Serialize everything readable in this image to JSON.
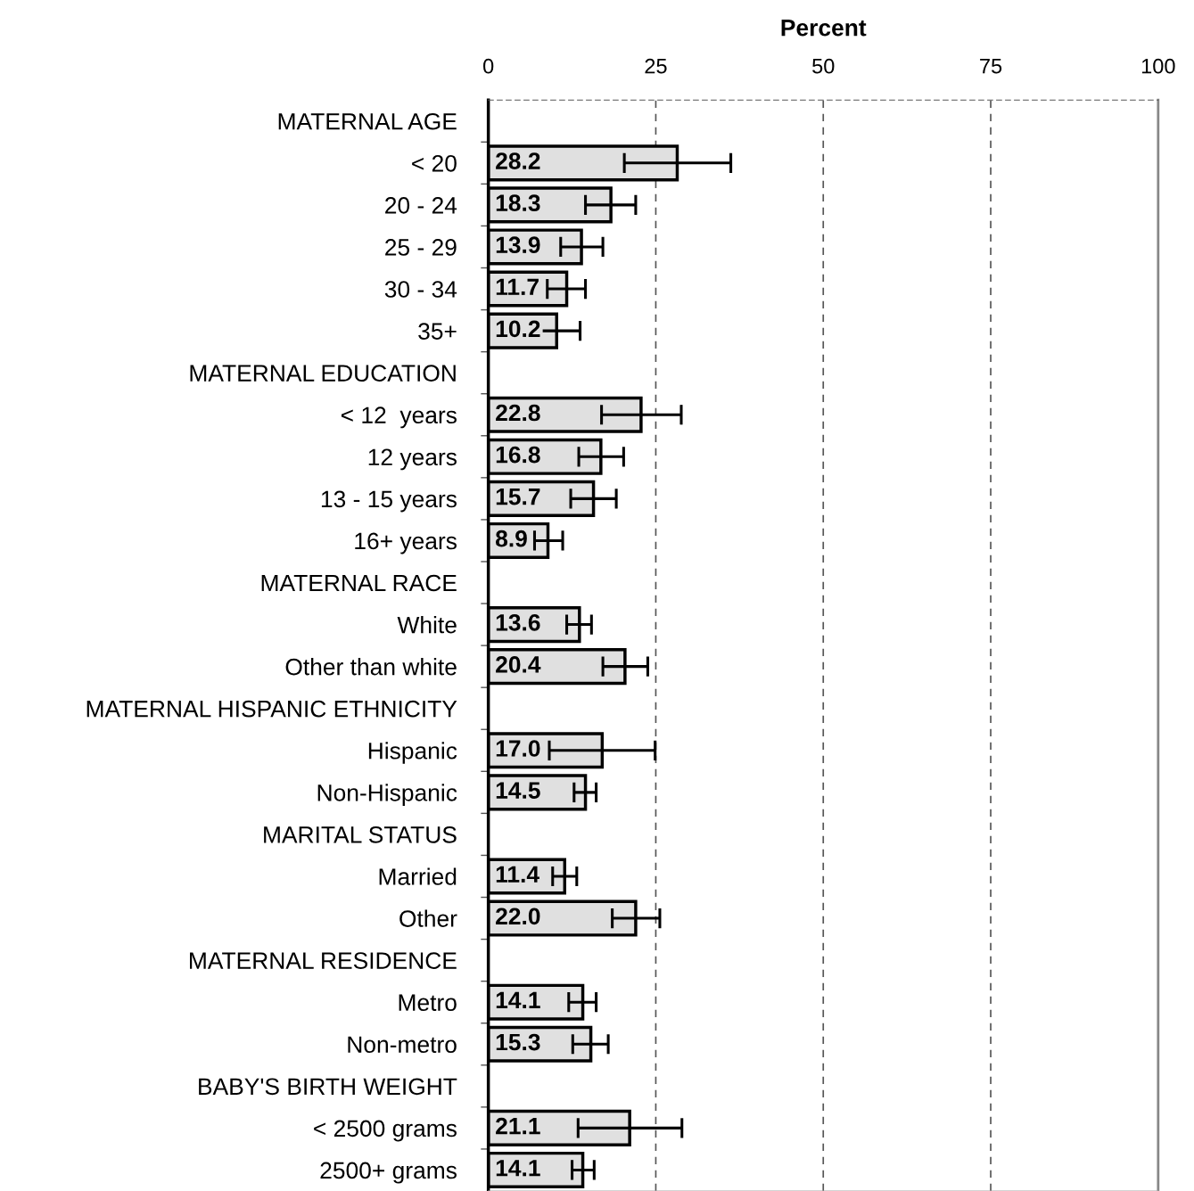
{
  "chart_data": {
    "type": "bar",
    "orientation": "horizontal",
    "xlabel": "Percent",
    "categories": [
      "MATERNAL AGE",
      "< 20",
      "20 - 24",
      "25 - 29",
      "30 - 34",
      "35+",
      "MATERNAL EDUCATION",
      "< 12  years",
      "12 years",
      "13 - 15 years",
      "16+ years",
      "MATERNAL RACE",
      "White",
      "Other than white",
      "MATERNAL HISPANIC ETHNICITY",
      "Hispanic",
      "Non-Hispanic",
      "MARITAL STATUS",
      "Married",
      "Other",
      "MATERNAL RESIDENCE",
      "Metro",
      "Non-metro",
      "BABY'S BIRTH WEIGHT",
      "< 2500 grams",
      "2500+ grams"
    ],
    "values": [
      null,
      28.2,
      18.3,
      13.9,
      11.7,
      10.2,
      null,
      22.8,
      16.8,
      15.7,
      8.9,
      null,
      13.6,
      20.4,
      null,
      17.0,
      14.5,
      null,
      11.4,
      22.0,
      null,
      14.1,
      15.3,
      null,
      21.1,
      14.1
    ],
    "errors": [
      null,
      [
        20.3,
        36.2
      ],
      [
        14.5,
        22.0
      ],
      [
        10.8,
        17.1
      ],
      [
        8.8,
        14.5
      ],
      [
        6.7,
        13.7
      ],
      null,
      [
        16.9,
        28.8
      ],
      [
        13.5,
        20.2
      ],
      [
        12.3,
        19.1
      ],
      [
        6.9,
        11.1
      ],
      null,
      [
        11.7,
        15.4
      ],
      [
        17.1,
        23.8
      ],
      null,
      [
        9.1,
        24.9
      ],
      [
        12.8,
        16.1
      ],
      null,
      [
        9.6,
        13.2
      ],
      [
        18.5,
        25.6
      ],
      null,
      [
        12.0,
        16.1
      ],
      [
        12.6,
        17.9
      ],
      null,
      [
        13.4,
        28.9
      ],
      [
        12.5,
        15.8
      ]
    ],
    "value_labels": [
      null,
      "28.2",
      "18.3",
      "13.9",
      "11.7",
      "10.2",
      null,
      "22.8",
      "16.8",
      "15.7",
      "8.9",
      null,
      "13.6",
      "20.4",
      null,
      "17.0",
      "14.5",
      null,
      "11.4",
      "22.0",
      null,
      "14.1",
      "15.3",
      null,
      "21.1",
      "14.1"
    ],
    "color": "#e0e0e0",
    "xlim": [
      0,
      100
    ],
    "xticks": [
      0,
      25,
      50,
      75,
      100
    ],
    "grid": "x"
  }
}
